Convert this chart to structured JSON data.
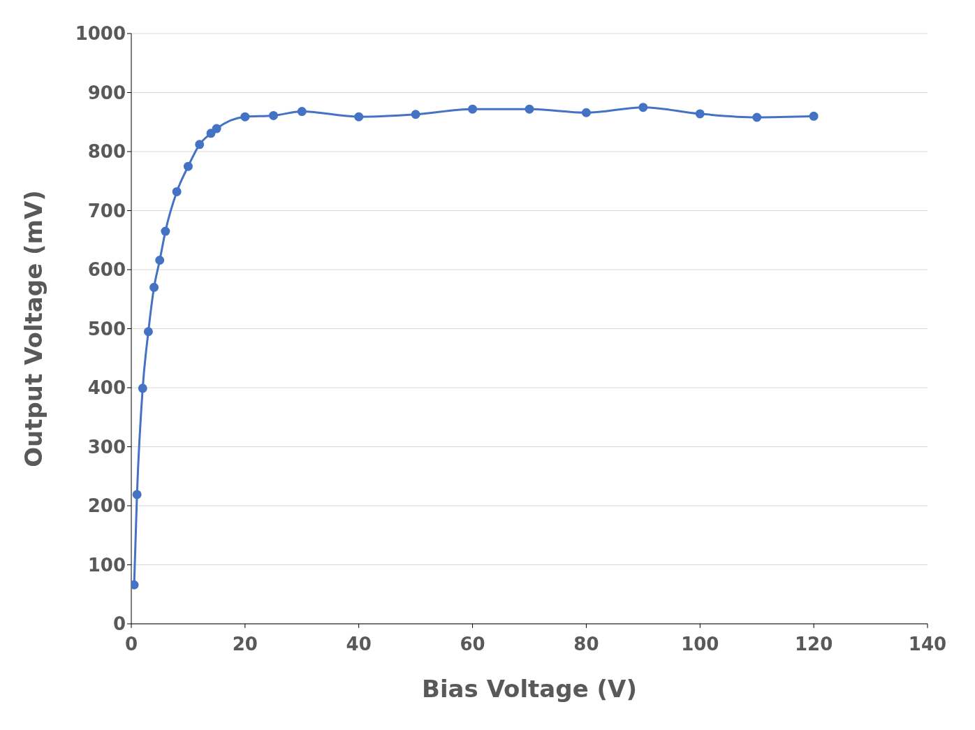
{
  "chart_data": {
    "type": "line",
    "xlabel": "Bias Voltage (V)",
    "ylabel": "Output Voltage (mV)",
    "x": [
      0.5,
      1,
      2,
      3,
      4,
      5,
      6,
      8,
      10,
      12,
      14,
      15,
      20,
      25,
      30,
      40,
      50,
      60,
      70,
      80,
      90,
      100,
      110,
      120
    ],
    "series": [
      {
        "color": "#4472c4",
        "values": [
          66,
          219,
          399,
          495,
          570,
          616,
          665,
          732,
          775,
          812,
          831,
          839,
          859,
          861,
          868,
          859,
          863,
          872,
          872,
          866,
          875,
          864,
          858,
          860
        ]
      }
    ],
    "xlim": [
      0,
      140
    ],
    "xticks": [
      0,
      20,
      40,
      60,
      80,
      100,
      120,
      140
    ],
    "ylim": [
      0,
      1000
    ],
    "yticks": [
      0,
      100,
      200,
      300,
      400,
      500,
      600,
      700,
      800,
      900,
      1000
    ],
    "grid": "y",
    "marker": "circle",
    "line_style": "solid",
    "legend": false
  }
}
